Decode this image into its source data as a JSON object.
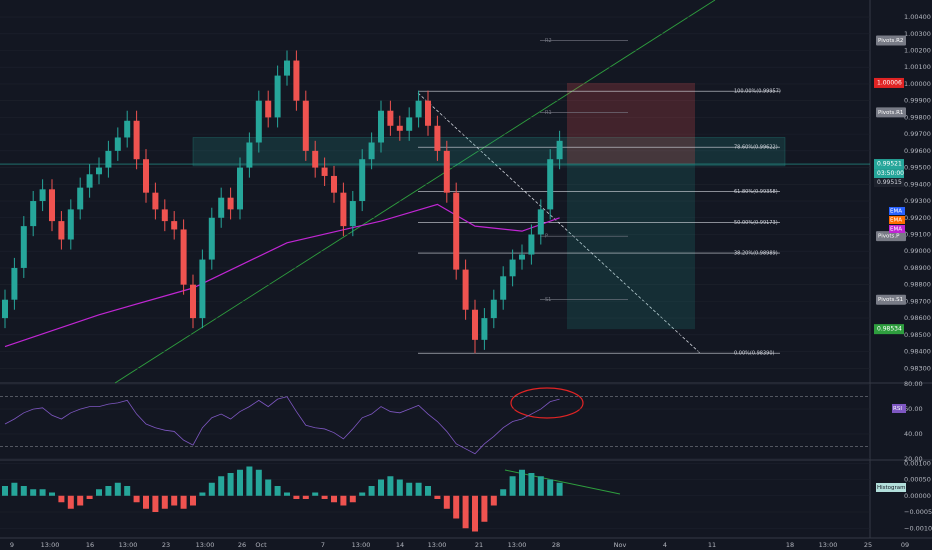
{
  "chart_data": {
    "type": "candlestick",
    "ylim": [
      0.98212,
      1.00502
    ],
    "yticks": [
      {
        "value": 0.983,
        "label": "0.98300"
      },
      {
        "value": 0.984,
        "label": "0.98400"
      },
      {
        "value": 0.985,
        "label": "0.98500"
      },
      {
        "value": 0.986,
        "label": "0.98600"
      },
      {
        "value": 0.987,
        "label": "0.98700"
      },
      {
        "value": 0.988,
        "label": "0.98800"
      },
      {
        "value": 0.989,
        "label": "0.98900"
      },
      {
        "value": 0.99,
        "label": "0.99000"
      },
      {
        "value": 0.991,
        "label": "0.99100"
      },
      {
        "value": 0.992,
        "label": "0.99200"
      },
      {
        "value": 0.993,
        "label": "0.99300"
      },
      {
        "value": 0.994,
        "label": "0.99400"
      },
      {
        "value": 0.995,
        "label": "0.99500"
      },
      {
        "value": 0.996,
        "label": "0.99600"
      },
      {
        "value": 0.997,
        "label": "0.99700"
      },
      {
        "value": 0.998,
        "label": "0.99800"
      },
      {
        "value": 0.999,
        "label": "0.99900"
      },
      {
        "value": 1.0,
        "label": "1.00000"
      },
      {
        "value": 1.001,
        "label": "1.00100"
      },
      {
        "value": 1.002,
        "label": "1.00200"
      },
      {
        "value": 1.003,
        "label": "1.00300"
      },
      {
        "value": 1.004,
        "label": "1.00400"
      }
    ],
    "x_labels": [
      "9",
      "13:00",
      "16",
      "13:00",
      "23",
      "13:00",
      "26",
      "Oct",
      "7",
      "13:00",
      "14",
      "13:00",
      "21",
      "13:00",
      "28",
      "Nov",
      "4",
      "11",
      "18",
      "13:00",
      "25",
      "09"
    ],
    "up_color": "#26a69a",
    "down_color": "#ef5350",
    "candles": [
      [
        0.986,
        0.9877,
        0.9854,
        0.9871
      ],
      [
        0.9871,
        0.9896,
        0.9865,
        0.989
      ],
      [
        0.989,
        0.9921,
        0.9884,
        0.9915
      ],
      [
        0.9915,
        0.9936,
        0.9909,
        0.993
      ],
      [
        0.993,
        0.9943,
        0.9924,
        0.9937
      ],
      [
        0.9937,
        0.9943,
        0.9912,
        0.9918
      ],
      [
        0.9918,
        0.9924,
        0.9901,
        0.9907
      ],
      [
        0.9907,
        0.9931,
        0.9901,
        0.9925
      ],
      [
        0.9925,
        0.9944,
        0.9919,
        0.9938
      ],
      [
        0.9938,
        0.9952,
        0.9932,
        0.9946
      ],
      [
        0.9946,
        0.9956,
        0.994,
        0.995
      ],
      [
        0.995,
        0.9966,
        0.9944,
        0.996
      ],
      [
        0.996,
        0.9974,
        0.9954,
        0.9968
      ],
      [
        0.9968,
        0.9984,
        0.9962,
        0.9978
      ],
      [
        0.9978,
        0.9984,
        0.9949,
        0.9955
      ],
      [
        0.9955,
        0.9961,
        0.9929,
        0.9935
      ],
      [
        0.9935,
        0.9941,
        0.9919,
        0.9925
      ],
      [
        0.9925,
        0.9931,
        0.9912,
        0.9918
      ],
      [
        0.9918,
        0.9924,
        0.9907,
        0.9913
      ],
      [
        0.9913,
        0.9919,
        0.9874,
        0.988
      ],
      [
        0.988,
        0.9886,
        0.9854,
        0.986
      ],
      [
        0.986,
        0.9901,
        0.9854,
        0.9895
      ],
      [
        0.9895,
        0.9926,
        0.9889,
        0.992
      ],
      [
        0.992,
        0.9938,
        0.9914,
        0.9932
      ],
      [
        0.9932,
        0.9938,
        0.9919,
        0.9925
      ],
      [
        0.9925,
        0.9956,
        0.9919,
        0.995
      ],
      [
        0.995,
        0.9971,
        0.9944,
        0.9965
      ],
      [
        0.9965,
        0.9996,
        0.9959,
        0.999
      ],
      [
        0.999,
        0.9996,
        0.9974,
        0.998
      ],
      [
        0.998,
        1.0011,
        0.9974,
        1.0005
      ],
      [
        1.0005,
        1.002,
        0.9999,
        1.0014
      ],
      [
        1.0014,
        1.002,
        0.9984,
        0.999
      ],
      [
        0.999,
        0.9996,
        0.9954,
        0.996
      ],
      [
        0.996,
        0.9966,
        0.9944,
        0.995
      ],
      [
        0.995,
        0.9956,
        0.9939,
        0.9945
      ],
      [
        0.9945,
        0.9951,
        0.9929,
        0.9935
      ],
      [
        0.9935,
        0.9941,
        0.9909,
        0.9915
      ],
      [
        0.9915,
        0.9936,
        0.9909,
        0.993
      ],
      [
        0.993,
        0.9961,
        0.9924,
        0.9955
      ],
      [
        0.9955,
        0.9971,
        0.9949,
        0.9965
      ],
      [
        0.9965,
        0.999,
        0.9959,
        0.9984
      ],
      [
        0.9984,
        0.999,
        0.9969,
        0.9975
      ],
      [
        0.9975,
        0.9981,
        0.9966,
        0.9972
      ],
      [
        0.9972,
        0.9986,
        0.9966,
        0.998
      ],
      [
        0.998,
        0.9996,
        0.9974,
        0.999
      ],
      [
        0.999,
        0.9996,
        0.9969,
        0.9975
      ],
      [
        0.9975,
        0.9981,
        0.9954,
        0.996
      ],
      [
        0.996,
        0.9966,
        0.9929,
        0.9935
      ],
      [
        0.9935,
        0.9941,
        0.9883,
        0.9889
      ],
      [
        0.9889,
        0.9895,
        0.9859,
        0.9865
      ],
      [
        0.9865,
        0.9871,
        0.9839,
        0.9847
      ],
      [
        0.9847,
        0.9866,
        0.9841,
        0.986
      ],
      [
        0.986,
        0.9877,
        0.9854,
        0.9871
      ],
      [
        0.9871,
        0.9891,
        0.9865,
        0.9885
      ],
      [
        0.9885,
        0.9901,
        0.9879,
        0.9895
      ],
      [
        0.9895,
        0.9904,
        0.9889,
        0.9898
      ],
      [
        0.9898,
        0.9916,
        0.9892,
        0.991
      ],
      [
        0.991,
        0.9931,
        0.9904,
        0.9925
      ],
      [
        0.9925,
        0.9961,
        0.9919,
        0.9955
      ],
      [
        0.9955,
        0.9972,
        0.9949,
        0.9966
      ]
    ],
    "ema": {
      "name": "EMA",
      "color": "#c026d3",
      "x": [
        0,
        10,
        20,
        30,
        40,
        46,
        50,
        55,
        59
      ],
      "values": [
        0.9843,
        0.9862,
        0.9878,
        0.9905,
        0.9918,
        0.9928,
        0.9915,
        0.9912,
        0.992
      ]
    },
    "ma_tags": [
      {
        "label": "EMA",
        "color": "#2962ff"
      },
      {
        "label": "EMA",
        "color": "#ff6d00"
      },
      {
        "label": "EMA",
        "color": "#c026d3"
      }
    ],
    "zone": [
      0.9951,
      0.9968
    ],
    "fib": [
      {
        "value": 0.99957,
        "label": "100.00%(0.99957)"
      },
      {
        "value": 0.99622,
        "label": "78.60%(0.99622)"
      },
      {
        "value": 0.99358,
        "label": "61.80%(0.99358)"
      },
      {
        "value": 0.99173,
        "label": "50.00%(0.99173)"
      },
      {
        "value": 0.98989,
        "label": "38.20%(0.98989)"
      },
      {
        "value": 0.9839,
        "label": "0.00%(0.98390)"
      }
    ],
    "pivots": [
      {
        "short": "R2",
        "label": "Pivots.R2",
        "value": 1.0026
      },
      {
        "short": "R1",
        "label": "Pivots.R1",
        "value": 0.9983
      },
      {
        "short": "P",
        "label": "Pivots.P",
        "value": 0.9909
      },
      {
        "short": "S1",
        "label": "Pivots.S1",
        "value": 0.9871
      }
    ],
    "position": {
      "stop": {
        "value": 1.00006,
        "label": "1.00006"
      },
      "entry": {
        "value": 0.99521,
        "label": "0.99521"
      },
      "target": {
        "value": 0.98534,
        "label": "0.98534"
      }
    },
    "countdown": "03:50:00",
    "last_price": {
      "value": 0.99515,
      "label": "0.99515"
    },
    "rsi": {
      "name": "RSI",
      "color": "#7e57c2",
      "ylim": [
        19,
        81
      ],
      "yticks": [
        {
          "value": 80,
          "label": "80.00"
        },
        {
          "value": 60,
          "label": "60.00"
        },
        {
          "value": 40,
          "label": "40.00"
        },
        {
          "value": 20,
          "label": "20.00"
        }
      ],
      "levels": [
        70,
        30
      ],
      "values": [
        48,
        52,
        57,
        60,
        61,
        55,
        52,
        57,
        60,
        62,
        62,
        64,
        65,
        67,
        56,
        48,
        45,
        43,
        42,
        35,
        31,
        45,
        53,
        56,
        52,
        58,
        62,
        67,
        62,
        68,
        70,
        58,
        47,
        45,
        44,
        41,
        36,
        44,
        53,
        56,
        62,
        58,
        57,
        60,
        63,
        56,
        50,
        42,
        32,
        28,
        24,
        32,
        38,
        45,
        50,
        52,
        56,
        60,
        66,
        68
      ]
    },
    "histogram": {
      "name": "Histogram",
      "ylim": [
        -0.0013,
        0.0011
      ],
      "yticks": [
        {
          "value": 0.001,
          "label": "0.00100"
        },
        {
          "value": 0.0005,
          "label": "0.00050"
        },
        {
          "value": 0,
          "label": "0.00000"
        },
        {
          "value": -0.0005,
          "label": "−0.00050"
        },
        {
          "value": -0.001,
          "label": "−0.00100"
        }
      ],
      "values": [
        0.0003,
        0.0004,
        0.0003,
        0.0002,
        0.0002,
        0.0001,
        -0.0002,
        -0.0004,
        -0.0003,
        -0.0001,
        0.0002,
        0.0003,
        0.0004,
        0.0003,
        -0.0002,
        -0.0004,
        -0.0005,
        -0.0004,
        -0.0003,
        -0.0004,
        -0.0003,
        0.0001,
        0.0004,
        0.0006,
        0.0007,
        0.0008,
        0.0009,
        0.0008,
        0.0005,
        0.0003,
        0.0001,
        -0.0001,
        -0.0001,
        0.0001,
        -0.0001,
        -0.0002,
        -0.0003,
        -0.0002,
        0.0001,
        0.0003,
        0.0005,
        0.0006,
        0.0005,
        0.0004,
        0.0004,
        0.0003,
        -0.0001,
        -0.0004,
        -0.0007,
        -0.001,
        -0.0011,
        -0.0008,
        -0.0003,
        0.0002,
        0.0006,
        0.0008,
        0.0007,
        0.0006,
        0.0005,
        0.0004
      ]
    }
  }
}
